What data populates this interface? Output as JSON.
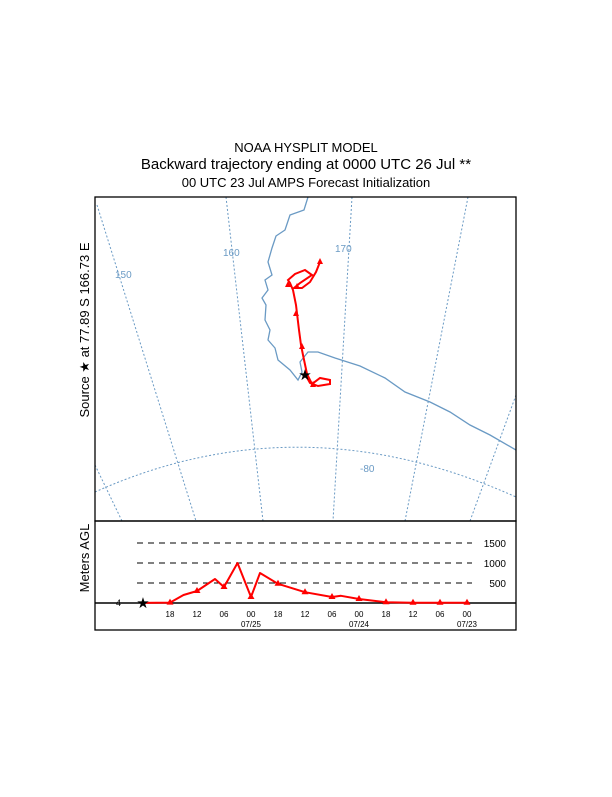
{
  "header": {
    "line1": "NOAA HYSPLIT MODEL",
    "line2": "Backward trajectory ending at 0000 UTC 26 Jul **",
    "line3": "00 UTC 23 Jul    AMPS  Forecast Initialization"
  },
  "map": {
    "source_label": "Source ★ at  77.89 S  166.73 E",
    "lon_labels": [
      "150",
      "160",
      "170"
    ],
    "lat_label": "-80",
    "grid_color": "#6a9ac4",
    "coast_color": "#6a9ac4",
    "trajectory_color": "#ff0000"
  },
  "chart_data": {
    "type": "line",
    "title": "",
    "ylabel": "Meters AGL",
    "xlabel": "",
    "ylim": [
      0,
      1500
    ],
    "yticks": [
      500,
      1000,
      1500
    ],
    "start_height_label": "4",
    "x_tick_labels": [
      "18",
      "12",
      "06",
      "00",
      "18",
      "12",
      "06",
      "00",
      "18",
      "12",
      "06",
      "00"
    ],
    "x_date_labels": [
      {
        "label": "07/25",
        "hours_back": 24
      },
      {
        "label": "07/24",
        "hours_back": 48
      },
      {
        "label": "07/23",
        "hours_back": 72
      }
    ],
    "series": [
      {
        "name": "trajectory height",
        "color": "#ff0000",
        "hours_back": [
          0,
          6,
          9,
          12,
          16,
          18,
          21,
          24,
          26,
          30,
          36,
          42,
          44,
          48,
          54,
          60,
          66,
          72
        ],
        "height_m": [
          4,
          10,
          200,
          300,
          600,
          400,
          1000,
          150,
          750,
          480,
          270,
          150,
          180,
          100,
          20,
          5,
          5,
          5
        ],
        "marker_hours": [
          6,
          12,
          18,
          24,
          30,
          36,
          42,
          48,
          54,
          60,
          66,
          72
        ]
      }
    ]
  }
}
